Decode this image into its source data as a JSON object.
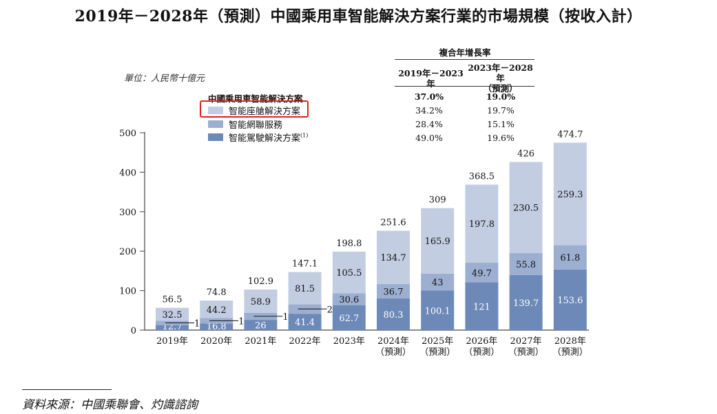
{
  "title": "2019年－2028年（預測）中國乘用車智能解決方案行業的市場規模（按收入計）",
  "unit": "單位：人民幣十億元",
  "legend": {
    "title": "中國乘用車智能解決方案",
    "items": [
      {
        "label": "智能座艙解決方案",
        "color": "#c3cde2"
      },
      {
        "label": "智能網聯服務",
        "color": "#9dafd1"
      },
      {
        "label": "智能駕駛解決方案",
        "sup": "(1)",
        "color": "#6d89b8"
      }
    ]
  },
  "cagr": {
    "header": "複合年增長率",
    "col1": "2019年－2023年",
    "col2": "2023年－2028年",
    "col2_sub": "（預測）",
    "rows": [
      [
        "37.0%",
        "19.0%"
      ],
      [
        "34.2%",
        "19.7%"
      ],
      [
        "28.4%",
        "15.1%"
      ],
      [
        "49.0%",
        "19.6%"
      ]
    ]
  },
  "highlight_color": "#e0201c",
  "source": "資料來源：中國乘聯會、灼識諮詢",
  "chart_data": {
    "type": "bar",
    "stacked": true,
    "categories": [
      "2019年",
      "2020年",
      "2021年",
      "2022年",
      "2023年",
      "2024年",
      "2025年",
      "2026年",
      "2027年",
      "2028年"
    ],
    "category_sub": [
      "",
      "",
      "",
      "",
      "",
      "（預測）",
      "（預測）",
      "（預測）",
      "（預測）",
      "（預測）"
    ],
    "series": [
      {
        "name": "智能駕駛解決方案",
        "values": [
          12.7,
          16.8,
          26.0,
          41.4,
          62.7,
          80.3,
          100.1,
          121.0,
          139.7,
          153.6
        ]
      },
      {
        "name": "智能網聯服務",
        "values": [
          11.2,
          13.8,
          18.0,
          24.3,
          30.6,
          36.7,
          43.0,
          49.7,
          55.8,
          61.8
        ]
      },
      {
        "name": "智能座艙解決方案",
        "values": [
          32.5,
          44.2,
          58.9,
          81.5,
          105.5,
          134.7,
          165.9,
          197.8,
          230.5,
          259.3
        ]
      }
    ],
    "totals": [
      56.5,
      74.8,
      102.9,
      147.1,
      198.8,
      251.6,
      309.0,
      368.5,
      426.0,
      474.7
    ],
    "yticks": [
      0,
      100,
      200,
      300,
      400,
      500
    ],
    "ylim": [
      0,
      500
    ],
    "xlabel": "",
    "ylabel": "",
    "grid": false
  }
}
